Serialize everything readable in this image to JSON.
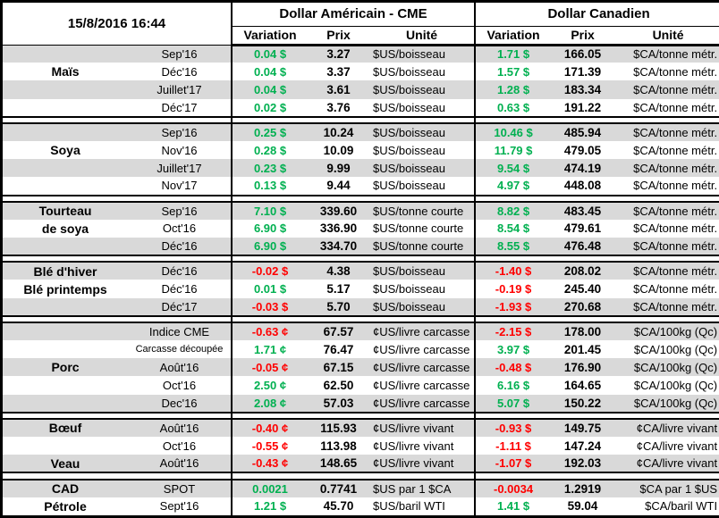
{
  "timestamp": "15/8/2016 16:44",
  "header": {
    "us_group": "Dollar Américain - CME",
    "ca_group": "Dollar Canadien",
    "variation_label": "Variation",
    "prix_label": "Prix",
    "unite_label": "Unité"
  },
  "colors": {
    "positive": "#00B050",
    "negative": "#FF0000",
    "stripe": "#D9D9D9",
    "border": "#000000"
  },
  "sections": [
    {
      "name": "mais",
      "rows": [
        {
          "category": "",
          "month": "Sep'16",
          "us_variation": "0.04 $",
          "us_direction": "pos",
          "us_prix": "3.27",
          "us_unite": "$US/boisseau",
          "ca_variation": "1.71 $",
          "ca_direction": "pos",
          "ca_prix": "166.05",
          "ca_unite": "$CA/tonne métr."
        },
        {
          "category": "Maïs",
          "month": "Déc'16",
          "us_variation": "0.04 $",
          "us_direction": "pos",
          "us_prix": "3.37",
          "us_unite": "$US/boisseau",
          "ca_variation": "1.57 $",
          "ca_direction": "pos",
          "ca_prix": "171.39",
          "ca_unite": "$CA/tonne métr."
        },
        {
          "category": "",
          "month": "Juillet'17",
          "us_variation": "0.04 $",
          "us_direction": "pos",
          "us_prix": "3.61",
          "us_unite": "$US/boisseau",
          "ca_variation": "1.28 $",
          "ca_direction": "pos",
          "ca_prix": "183.34",
          "ca_unite": "$CA/tonne métr."
        },
        {
          "category": "",
          "month": "Déc'17",
          "us_variation": "0.02 $",
          "us_direction": "pos",
          "us_prix": "3.76",
          "us_unite": "$US/boisseau",
          "ca_variation": "0.63 $",
          "ca_direction": "pos",
          "ca_prix": "191.22",
          "ca_unite": "$CA/tonne métr."
        }
      ]
    },
    {
      "name": "soya",
      "rows": [
        {
          "category": "",
          "month": "Sep'16",
          "us_variation": "0.25 $",
          "us_direction": "pos",
          "us_prix": "10.24",
          "us_unite": "$US/boisseau",
          "ca_variation": "10.46 $",
          "ca_direction": "pos",
          "ca_prix": "485.94",
          "ca_unite": "$CA/tonne métr."
        },
        {
          "category": "Soya",
          "month": "Nov'16",
          "us_variation": "0.28 $",
          "us_direction": "pos",
          "us_prix": "10.09",
          "us_unite": "$US/boisseau",
          "ca_variation": "11.79 $",
          "ca_direction": "pos",
          "ca_prix": "479.05",
          "ca_unite": "$CA/tonne métr."
        },
        {
          "category": "",
          "month": "Juillet'17",
          "us_variation": "0.23 $",
          "us_direction": "pos",
          "us_prix": "9.99",
          "us_unite": "$US/boisseau",
          "ca_variation": "9.54 $",
          "ca_direction": "pos",
          "ca_prix": "474.19",
          "ca_unite": "$CA/tonne métr."
        },
        {
          "category": "",
          "month": "Nov'17",
          "us_variation": "0.13 $",
          "us_direction": "pos",
          "us_prix": "9.44",
          "us_unite": "$US/boisseau",
          "ca_variation": "4.97 $",
          "ca_direction": "pos",
          "ca_prix": "448.08",
          "ca_unite": "$CA/tonne métr."
        }
      ]
    },
    {
      "name": "tourteau-de-soya",
      "rows": [
        {
          "category": "Tourteau",
          "month": "Sep'16",
          "us_variation": "7.10 $",
          "us_direction": "pos",
          "us_prix": "339.60",
          "us_unite": "$US/tonne courte",
          "ca_variation": "8.82 $",
          "ca_direction": "pos",
          "ca_prix": "483.45",
          "ca_unite": "$CA/tonne métr."
        },
        {
          "category": "de soya",
          "month": "Oct'16",
          "us_variation": "6.90 $",
          "us_direction": "pos",
          "us_prix": "336.90",
          "us_unite": "$US/tonne courte",
          "ca_variation": "8.54 $",
          "ca_direction": "pos",
          "ca_prix": "479.61",
          "ca_unite": "$CA/tonne métr."
        },
        {
          "category": "",
          "month": "Déc'16",
          "us_variation": "6.90 $",
          "us_direction": "pos",
          "us_prix": "334.70",
          "us_unite": "$US/tonne courte",
          "ca_variation": "8.55 $",
          "ca_direction": "pos",
          "ca_prix": "476.48",
          "ca_unite": "$CA/tonne métr."
        }
      ]
    },
    {
      "name": "ble",
      "rows": [
        {
          "category": "Blé d'hiver",
          "month": "Déc'16",
          "us_variation": "-0.02 $",
          "us_direction": "neg",
          "us_prix": "4.38",
          "us_unite": "$US/boisseau",
          "ca_variation": "-1.40 $",
          "ca_direction": "neg",
          "ca_prix": "208.02",
          "ca_unite": "$CA/tonne métr."
        },
        {
          "category": "Blé printemps",
          "month": "Déc'16",
          "us_variation": "0.01 $",
          "us_direction": "pos",
          "us_prix": "5.17",
          "us_unite": "$US/boisseau",
          "ca_variation": "-0.19 $",
          "ca_direction": "neg",
          "ca_prix": "245.40",
          "ca_unite": "$CA/tonne métr."
        },
        {
          "category": "",
          "month": "Déc'17",
          "us_variation": "-0.03 $",
          "us_direction": "neg",
          "us_prix": "5.70",
          "us_unite": "$US/boisseau",
          "ca_variation": "-1.93 $",
          "ca_direction": "neg",
          "ca_prix": "270.68",
          "ca_unite": "$CA/tonne métr."
        }
      ]
    },
    {
      "name": "porc",
      "rows": [
        {
          "category": "",
          "month": "Indice CME",
          "us_variation": "-0.63 ¢",
          "us_direction": "neg",
          "us_prix": "67.57",
          "us_unite": "¢US/livre carcasse",
          "ca_variation": "-2.15 $",
          "ca_direction": "neg",
          "ca_prix": "178.00",
          "ca_unite": "$CA/100kg (Qc)"
        },
        {
          "category": "",
          "month": "Carcasse découpée",
          "us_variation": "1.71 ¢",
          "us_direction": "pos",
          "us_prix": "76.47",
          "us_unite": "¢US/livre carcasse",
          "ca_variation": "3.97 $",
          "ca_direction": "pos",
          "ca_prix": "201.45",
          "ca_unite": "$CA/100kg (Qc)"
        },
        {
          "category": "Porc",
          "month": "Août'16",
          "us_variation": "-0.05 ¢",
          "us_direction": "neg",
          "us_prix": "67.15",
          "us_unite": "¢US/livre carcasse",
          "ca_variation": "-0.48 $",
          "ca_direction": "neg",
          "ca_prix": "176.90",
          "ca_unite": "$CA/100kg (Qc)"
        },
        {
          "category": "",
          "month": "Oct'16",
          "us_variation": "2.50 ¢",
          "us_direction": "pos",
          "us_prix": "62.50",
          "us_unite": "¢US/livre carcasse",
          "ca_variation": "6.16 $",
          "ca_direction": "pos",
          "ca_prix": "164.65",
          "ca_unite": "$CA/100kg (Qc)"
        },
        {
          "category": "",
          "month": "Dec'16",
          "us_variation": "2.08 ¢",
          "us_direction": "pos",
          "us_prix": "57.03",
          "us_unite": "¢US/livre carcasse",
          "ca_variation": "5.07 $",
          "ca_direction": "pos",
          "ca_prix": "150.22",
          "ca_unite": "$CA/100kg (Qc)"
        }
      ]
    },
    {
      "name": "boeuf-veau",
      "rows": [
        {
          "category": "Bœuf",
          "month": "Août'16",
          "us_variation": "-0.40 ¢",
          "us_direction": "neg",
          "us_prix": "115.93",
          "us_unite": "¢US/livre vivant",
          "ca_variation": "-0.93 $",
          "ca_direction": "neg",
          "ca_prix": "149.75",
          "ca_unite": "¢CA/livre vivant"
        },
        {
          "category": "",
          "month": "Oct'16",
          "us_variation": "-0.55 ¢",
          "us_direction": "neg",
          "us_prix": "113.98",
          "us_unite": "¢US/livre vivant",
          "ca_variation": "-1.11 $",
          "ca_direction": "neg",
          "ca_prix": "147.24",
          "ca_unite": "¢CA/livre vivant"
        },
        {
          "category": "Veau",
          "month": "Août'16",
          "us_variation": "-0.43 ¢",
          "us_direction": "neg",
          "us_prix": "148.65",
          "us_unite": "¢US/livre vivant",
          "ca_variation": "-1.07 $",
          "ca_direction": "neg",
          "ca_prix": "192.03",
          "ca_unite": "¢CA/livre vivant"
        }
      ]
    },
    {
      "name": "cad-petrole",
      "rows": [
        {
          "category": "CAD",
          "month": "SPOT",
          "us_variation": "0.0021",
          "us_direction": "pos",
          "us_prix": "0.7741",
          "us_unite": "$US par 1 $CA",
          "ca_variation": "-0.0034",
          "ca_direction": "neg",
          "ca_prix": "1.2919",
          "ca_unite": "$CA par 1 $US"
        },
        {
          "category": "Pétrole",
          "month": "Sept'16",
          "us_variation": "1.21 $",
          "us_direction": "pos",
          "us_prix": "45.70",
          "us_unite": "$US/baril WTI",
          "ca_variation": "1.41 $",
          "ca_direction": "pos",
          "ca_prix": "59.04",
          "ca_unite": "$CA/baril WTI"
        }
      ]
    }
  ]
}
